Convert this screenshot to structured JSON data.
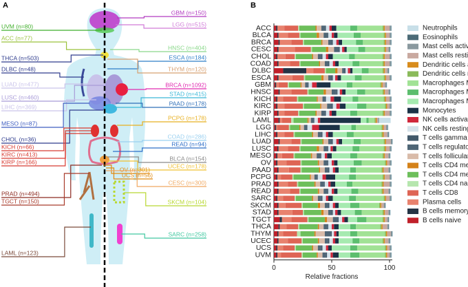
{
  "panel_labels": [
    "A",
    "B"
  ],
  "body_map": {
    "labels": [
      {
        "text": "UVM (n=80)",
        "color": "#3fae2a"
      },
      {
        "text": "ACC (n=77)",
        "color": "#9ac23c"
      },
      {
        "text": "THCA (n=503)",
        "color": "#2d3a8c"
      },
      {
        "text": "DLBC (n=48)",
        "color": "#2d3a8c"
      },
      {
        "text": "LUAD (n=477)",
        "color": "#c9c3ea"
      },
      {
        "text": "LUSC (n=460)",
        "color": "#a89bd8"
      },
      {
        "text": "LIHC (n=369)",
        "color": "#c9c3ea"
      },
      {
        "text": "MESO (n=87)",
        "color": "#3d5cc0"
      },
      {
        "text": "CHOL (n=36)",
        "color": "#2d3a8c"
      },
      {
        "text": "KICH (n=66)",
        "color": "#d83a30"
      },
      {
        "text": "KIRC (n=413)",
        "color": "#d83a30"
      },
      {
        "text": "KIRP (n=166)",
        "color": "#d83a30"
      },
      {
        "text": "PRAD (n=494)",
        "color": "#8c2a20"
      },
      {
        "text": "TGCT (n=150)",
        "color": "#a83a2a"
      },
      {
        "text": "LAML (n=123)",
        "color": "#7a4a3a"
      },
      {
        "text": "GBM (n=150)",
        "color": "#b23ac0"
      },
      {
        "text": "LGG (n=515)",
        "color": "#d07ad8"
      },
      {
        "text": "HNSC (n=404)",
        "color": "#8ad88a"
      },
      {
        "text": "ESCA (n=184)",
        "color": "#2f7fc8"
      },
      {
        "text": "THYM (n=120)",
        "color": "#d8a070"
      },
      {
        "text": "BRCA (n=1092)",
        "color": "#e02ab0"
      },
      {
        "text": "STAD (n=415)",
        "color": "#3ab8d8"
      },
      {
        "text": "PAAD (n=178)",
        "color": "#2f6fb8"
      },
      {
        "text": "PCPG (n=178)",
        "color": "#e8b020"
      },
      {
        "text": "COAD (n=286)",
        "color": "#9ad0f0"
      },
      {
        "text": "READ (n=94)",
        "color": "#2f6fc8"
      },
      {
        "text": "BLCA (n=154)",
        "color": "#8a8a8a"
      },
      {
        "text": "UCEC (n=178)",
        "color": "#f0c030"
      },
      {
        "text": "OV (n=301)",
        "color": "#e08a10"
      },
      {
        "text": "UCS (n=56)",
        "color": "#e08a10"
      },
      {
        "text": "CESC (n=300)",
        "color": "#f0a860"
      },
      {
        "text": "SKCM (n=104)",
        "color": "#b8d830"
      },
      {
        "text": "SARC (n=258)",
        "color": "#40c8a0"
      }
    ]
  },
  "chart_data": {
    "type": "stacked-barh",
    "x_label": "Relative fractions",
    "xlim": [
      0,
      100
    ],
    "xticks": [
      0,
      50,
      100
    ],
    "categories": [
      "ACC",
      "BLCA",
      "BRCA",
      "CESC",
      "CHOL",
      "COAD",
      "DLBC",
      "ESCA",
      "GBM",
      "HNSC",
      "KICH",
      "KIRC",
      "KIRP",
      "LAML",
      "LGG",
      "LIHC",
      "LUAD",
      "LUSC",
      "MESO",
      "OV",
      "PAAD",
      "PCPG",
      "PRAD",
      "READ",
      "SARC",
      "SKCM",
      "STAD",
      "TGCT",
      "THCA",
      "THYM",
      "UCEC",
      "UCS",
      "UVM"
    ],
    "series": [
      {
        "name": "B cells naive",
        "color": "#c0202a",
        "values": [
          2,
          3,
          4,
          3,
          2,
          3,
          8,
          3,
          1,
          4,
          2,
          2,
          3,
          4,
          1,
          2,
          4,
          3,
          2,
          2,
          3,
          2,
          3,
          3,
          2,
          3,
          3,
          5,
          4,
          3,
          3,
          2,
          2
        ]
      },
      {
        "name": "B cells memory",
        "color": "#253445",
        "values": [
          1,
          1,
          1,
          1,
          1,
          1,
          20,
          1,
          1,
          1,
          1,
          1,
          1,
          1,
          1,
          1,
          1,
          1,
          1,
          1,
          1,
          1,
          1,
          1,
          1,
          1,
          1,
          2,
          1,
          1,
          1,
          1,
          1
        ]
      },
      {
        "name": "Plasma cells",
        "color": "#e8826e",
        "values": [
          6,
          8,
          10,
          14,
          7,
          10,
          6,
          12,
          2,
          10,
          5,
          6,
          5,
          2,
          1,
          6,
          10,
          8,
          4,
          8,
          9,
          3,
          8,
          10,
          5,
          6,
          12,
          8,
          6,
          4,
          8,
          5,
          3
        ]
      },
      {
        "name": "T cells CD8",
        "color": "#de6555",
        "values": [
          12,
          10,
          10,
          14,
          8,
          8,
          10,
          10,
          8,
          14,
          12,
          16,
          12,
          8,
          10,
          8,
          8,
          10,
          10,
          12,
          10,
          10,
          8,
          8,
          10,
          14,
          9,
          14,
          10,
          12,
          12,
          10,
          18
        ]
      },
      {
        "name": "T cells CD4 naive",
        "color": "#b6e6ae",
        "values": [
          1,
          1,
          1,
          1,
          1,
          1,
          1,
          1,
          1,
          1,
          1,
          1,
          1,
          2,
          1,
          1,
          1,
          1,
          1,
          1,
          1,
          1,
          1,
          1,
          1,
          1,
          1,
          1,
          1,
          3,
          1,
          1,
          1
        ]
      },
      {
        "name": "T cells CD4 memory resting",
        "color": "#6dbf5b",
        "values": [
          14,
          14,
          15,
          12,
          14,
          16,
          8,
          14,
          10,
          13,
          16,
          14,
          14,
          12,
          8,
          15,
          18,
          14,
          14,
          14,
          15,
          14,
          14,
          15,
          14,
          13,
          15,
          14,
          16,
          12,
          13,
          14,
          12
        ]
      },
      {
        "name": "T cells CD4 memory activated",
        "color": "#d4821a",
        "values": [
          1,
          2,
          1,
          2,
          1,
          1,
          2,
          2,
          1,
          2,
          1,
          1,
          1,
          1,
          1,
          1,
          1,
          2,
          1,
          1,
          1,
          1,
          1,
          1,
          1,
          2,
          2,
          2,
          1,
          1,
          1,
          1,
          1
        ]
      },
      {
        "name": "T cells follicular helper",
        "color": "#d9bba9",
        "values": [
          4,
          4,
          5,
          5,
          4,
          4,
          4,
          4,
          3,
          5,
          4,
          5,
          4,
          2,
          3,
          4,
          4,
          4,
          4,
          4,
          4,
          3,
          4,
          4,
          4,
          4,
          4,
          5,
          4,
          8,
          5,
          4,
          4
        ]
      },
      {
        "name": "T cells regulatory (Tregs)",
        "color": "#4f6676",
        "values": [
          3,
          3,
          3,
          4,
          3,
          3,
          2,
          3,
          2,
          4,
          2,
          4,
          3,
          2,
          2,
          3,
          3,
          3,
          3,
          3,
          3,
          2,
          3,
          3,
          3,
          3,
          3,
          4,
          3,
          5,
          3,
          3,
          3
        ]
      },
      {
        "name": "T cells gamma delta",
        "color": "#42596a",
        "values": [
          1,
          1,
          1,
          1,
          1,
          1,
          1,
          1,
          1,
          1,
          1,
          1,
          1,
          1,
          1,
          1,
          1,
          1,
          1,
          1,
          1,
          1,
          1,
          1,
          1,
          1,
          1,
          1,
          1,
          1,
          1,
          1,
          1
        ]
      },
      {
        "name": "NK cells resting",
        "color": "#d5e2ea",
        "values": [
          3,
          3,
          3,
          2,
          3,
          3,
          2,
          2,
          3,
          2,
          4,
          3,
          3,
          3,
          4,
          3,
          3,
          2,
          3,
          3,
          3,
          4,
          3,
          3,
          3,
          3,
          2,
          3,
          3,
          2,
          3,
          3,
          3
        ]
      },
      {
        "name": "NK cells activated",
        "color": "#d0283c",
        "values": [
          2,
          2,
          2,
          2,
          2,
          2,
          2,
          2,
          4,
          2,
          3,
          3,
          2,
          2,
          6,
          2,
          2,
          2,
          2,
          2,
          2,
          3,
          2,
          2,
          2,
          2,
          2,
          2,
          2,
          2,
          2,
          2,
          2
        ]
      },
      {
        "name": "Monocytes",
        "color": "#1c3247",
        "values": [
          4,
          3,
          3,
          2,
          4,
          3,
          2,
          3,
          12,
          3,
          6,
          5,
          4,
          35,
          18,
          4,
          3,
          3,
          4,
          3,
          3,
          8,
          4,
          3,
          4,
          3,
          3,
          3,
          4,
          2,
          3,
          3,
          5
        ]
      },
      {
        "name": "Macrophages M0",
        "color": "#a6eab0",
        "values": [
          12,
          14,
          12,
          10,
          14,
          12,
          8,
          12,
          14,
          10,
          10,
          10,
          12,
          5,
          10,
          12,
          10,
          14,
          16,
          14,
          10,
          12,
          10,
          12,
          14,
          10,
          12,
          8,
          10,
          10,
          12,
          16,
          10
        ]
      },
      {
        "name": "Macrophages M1",
        "color": "#5cbe6e",
        "values": [
          6,
          6,
          6,
          6,
          5,
          6,
          6,
          6,
          5,
          7,
          5,
          8,
          6,
          2,
          4,
          6,
          6,
          6,
          6,
          7,
          5,
          6,
          5,
          6,
          6,
          8,
          6,
          8,
          5,
          6,
          6,
          6,
          8
        ]
      },
      {
        "name": "Macrophages M2",
        "color": "#a1e295",
        "values": [
          22,
          20,
          18,
          16,
          24,
          20,
          12,
          19,
          24,
          15,
          22,
          16,
          22,
          5,
          22,
          24,
          20,
          21,
          22,
          20,
          22,
          23,
          25,
          20,
          24,
          17,
          18,
          14,
          21,
          24,
          20,
          24,
          22
        ]
      },
      {
        "name": "Dendritic cells resting",
        "color": "#8aba5a",
        "values": [
          1,
          1,
          1,
          1,
          1,
          1,
          1,
          1,
          1,
          1,
          1,
          1,
          1,
          1,
          1,
          1,
          1,
          1,
          1,
          1,
          1,
          1,
          1,
          1,
          1,
          1,
          1,
          1,
          1,
          1,
          1,
          1,
          1
        ]
      },
      {
        "name": "Dendritic cells activated",
        "color": "#d88c1c",
        "values": [
          1,
          1,
          1,
          1,
          1,
          1,
          1,
          1,
          1,
          1,
          1,
          1,
          1,
          1,
          1,
          1,
          1,
          1,
          1,
          1,
          1,
          1,
          1,
          1,
          1,
          1,
          1,
          1,
          1,
          1,
          1,
          1,
          1
        ]
      },
      {
        "name": "Mast cells resting",
        "color": "#c9a9a0",
        "values": [
          4,
          3,
          3,
          2,
          4,
          4,
          2,
          3,
          2,
          3,
          3,
          2,
          4,
          1,
          2,
          3,
          4,
          3,
          3,
          2,
          4,
          4,
          5,
          4,
          3,
          2,
          3,
          2,
          4,
          3,
          3,
          2,
          2
        ]
      },
      {
        "name": "Mast cells activated",
        "color": "#8a999f",
        "values": [
          1,
          1,
          1,
          1,
          1,
          1,
          1,
          1,
          1,
          1,
          1,
          1,
          1,
          1,
          1,
          1,
          1,
          1,
          1,
          1,
          1,
          1,
          1,
          1,
          1,
          1,
          1,
          1,
          1,
          1,
          1,
          1,
          1
        ]
      },
      {
        "name": "Eosinophils",
        "color": "#4c6b77",
        "values": [
          0.5,
          0.5,
          0.5,
          0.5,
          0.5,
          0.5,
          0.5,
          0.5,
          0.5,
          0.5,
          0.5,
          0.5,
          0.5,
          0,
          0.5,
          0.5,
          0.5,
          0.5,
          0.5,
          0.5,
          0.5,
          0.5,
          0.5,
          0.5,
          0.5,
          0.5,
          0.5,
          0.5,
          0.5,
          0.5,
          0.5,
          0.5,
          0.5
        ]
      },
      {
        "name": "Neutrophils",
        "color": "#c8dfe8",
        "values": [
          0.5,
          0.5,
          0.5,
          0.5,
          0.5,
          0.5,
          0.5,
          0.5,
          0.5,
          0.5,
          0.5,
          0.5,
          0.5,
          10,
          0.5,
          0.5,
          0.5,
          0.5,
          0.5,
          0.5,
          0.5,
          0.5,
          0.5,
          0.5,
          0.5,
          0.5,
          0.5,
          0.5,
          0.5,
          0.5,
          0.5,
          0.5,
          0.5
        ]
      }
    ]
  }
}
